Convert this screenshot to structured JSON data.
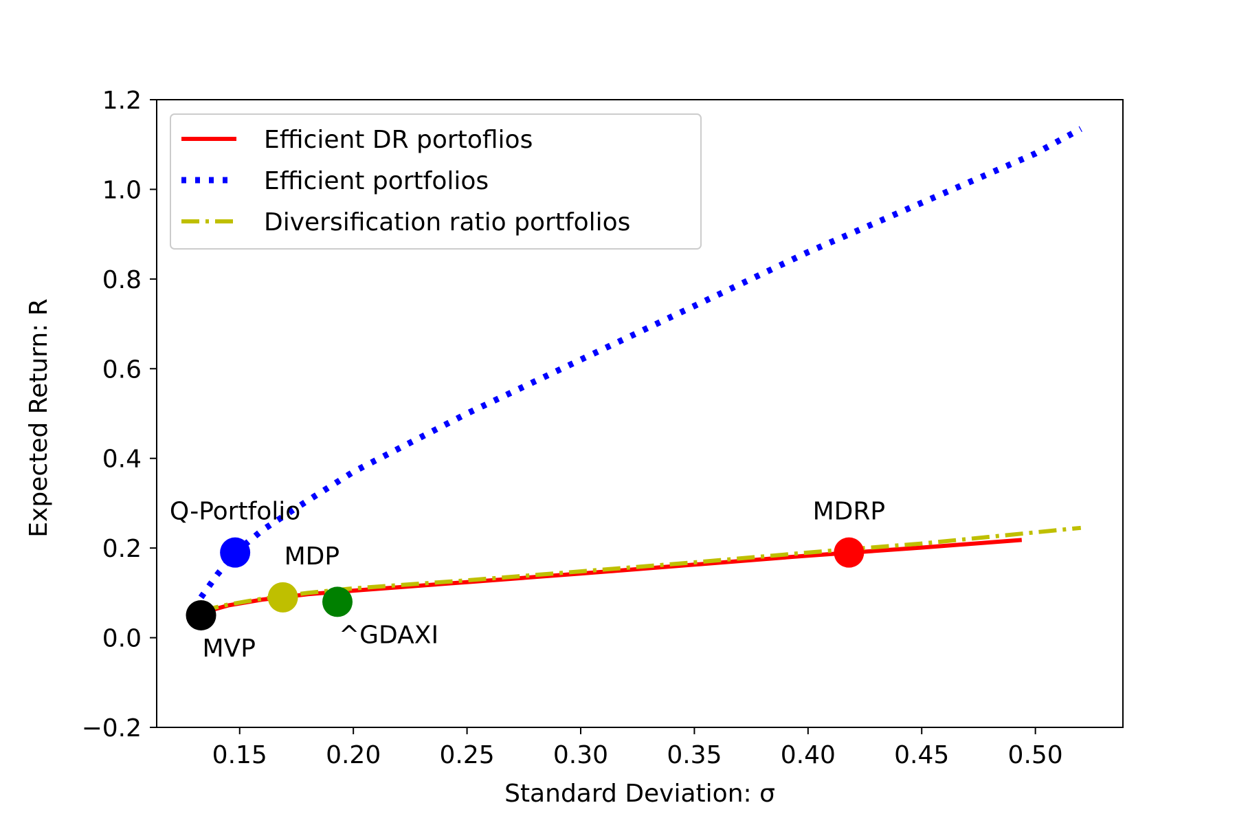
{
  "chart_data": {
    "type": "line",
    "title": "",
    "xlabel": "Standard Deviation: σ",
    "ylabel": "Expected Return: R",
    "xlim": [
      0.1135,
      0.5385
    ],
    "ylim": [
      -0.2,
      1.2
    ],
    "xticks": [
      0.15,
      0.2,
      0.25,
      0.3,
      0.35,
      0.4,
      0.45,
      0.5
    ],
    "xtick_labels": [
      "0.15",
      "0.20",
      "0.25",
      "0.30",
      "0.35",
      "0.40",
      "0.45",
      "0.50"
    ],
    "yticks": [
      -0.2,
      0.0,
      0.2,
      0.4,
      0.6,
      0.8,
      1.0,
      1.2
    ],
    "ytick_labels": [
      "−0.2",
      "0.0",
      "0.2",
      "0.4",
      "0.6",
      "0.8",
      "1.0",
      "1.2"
    ],
    "grid": false,
    "legend_position": "top-left",
    "series": [
      {
        "name": "Efficient DR portoflios",
        "style": "solid",
        "color": "#ff0000",
        "x": [
          0.133,
          0.145,
          0.16,
          0.18,
          0.2,
          0.25,
          0.3,
          0.35,
          0.4,
          0.45,
          0.494
        ],
        "y": [
          0.055,
          0.072,
          0.085,
          0.097,
          0.105,
          0.124,
          0.143,
          0.163,
          0.183,
          0.201,
          0.218
        ]
      },
      {
        "name": "Efficient portfolios",
        "style": "dotted",
        "color": "#0000ff",
        "x": [
          0.133,
          0.14,
          0.148,
          0.16,
          0.175,
          0.2,
          0.25,
          0.3,
          0.35,
          0.4,
          0.45,
          0.5,
          0.52
        ],
        "y": [
          0.09,
          0.14,
          0.19,
          0.24,
          0.29,
          0.37,
          0.5,
          0.62,
          0.74,
          0.86,
          0.97,
          1.08,
          1.135
        ]
      },
      {
        "name": "Diversification ratio portfolios",
        "style": "dashdot",
        "color": "#bfbf00",
        "x": [
          0.133,
          0.145,
          0.16,
          0.18,
          0.2,
          0.25,
          0.3,
          0.35,
          0.4,
          0.45,
          0.5,
          0.52
        ],
        "y": [
          0.06,
          0.074,
          0.087,
          0.1,
          0.11,
          0.128,
          0.148,
          0.168,
          0.19,
          0.21,
          0.235,
          0.245
        ]
      }
    ],
    "points": [
      {
        "label": "MVP",
        "x": 0.133,
        "y": 0.05,
        "color": "#000000",
        "label_pos": "below-right"
      },
      {
        "label": "Q-Portfolio",
        "x": 0.148,
        "y": 0.19,
        "color": "#0000ff",
        "label_pos": "above"
      },
      {
        "label": "MDP",
        "x": 0.169,
        "y": 0.09,
        "color": "#bfbf00",
        "label_pos": "above-right"
      },
      {
        "label": "^GDAXI",
        "x": 0.193,
        "y": 0.08,
        "color": "#008000",
        "label_pos": "below-right"
      },
      {
        "label": "MDRP",
        "x": 0.418,
        "y": 0.19,
        "color": "#ff0000",
        "label_pos": "above"
      }
    ]
  }
}
